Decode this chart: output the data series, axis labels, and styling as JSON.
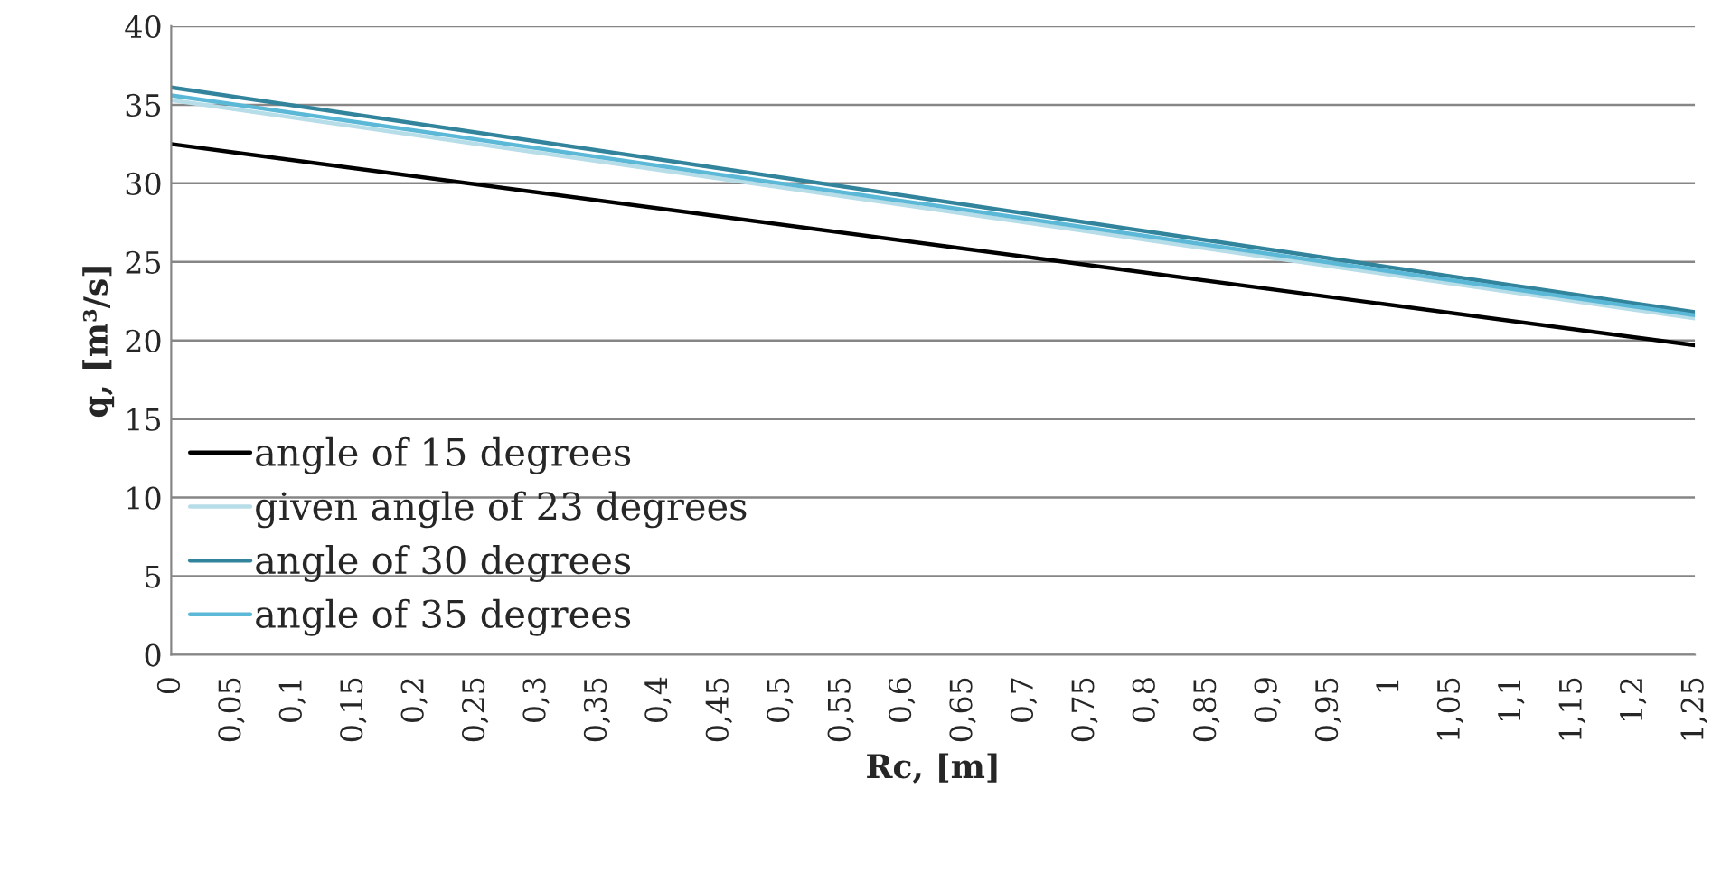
{
  "chart_data": {
    "type": "line",
    "xlabel": "Rc, [m]",
    "ylabel": "q, [m³/s]",
    "x": [
      0,
      1.25
    ],
    "series": [
      {
        "name": "angle of 15 degrees",
        "color": "#000000",
        "values": [
          32.5,
          19.7
        ]
      },
      {
        "name": "given angle of 23 degrees",
        "color": "#b7dde8",
        "values": [
          35.3,
          21.4
        ]
      },
      {
        "name": "angle of 30 degrees",
        "color": "#31849b",
        "values": [
          36.1,
          21.8
        ]
      },
      {
        "name": "angle of 35 degrees",
        "color": "#5bb8d6",
        "values": [
          35.6,
          21.6
        ]
      }
    ],
    "xlim": [
      0,
      1.25
    ],
    "xticks": [
      {
        "value": 0,
        "label": "0"
      },
      {
        "value": 0.05,
        "label": "0,05"
      },
      {
        "value": 0.1,
        "label": "0,1"
      },
      {
        "value": 0.15,
        "label": "0,15"
      },
      {
        "value": 0.2,
        "label": "0,2"
      },
      {
        "value": 0.25,
        "label": "0,25"
      },
      {
        "value": 0.3,
        "label": "0,3"
      },
      {
        "value": 0.35,
        "label": "0,35"
      },
      {
        "value": 0.4,
        "label": "0,4"
      },
      {
        "value": 0.45,
        "label": "0,45"
      },
      {
        "value": 0.5,
        "label": "0,5"
      },
      {
        "value": 0.55,
        "label": "0,55"
      },
      {
        "value": 0.6,
        "label": "0,6"
      },
      {
        "value": 0.65,
        "label": "0,65"
      },
      {
        "value": 0.7,
        "label": "0,7"
      },
      {
        "value": 0.75,
        "label": "0,75"
      },
      {
        "value": 0.8,
        "label": "0,8"
      },
      {
        "value": 0.85,
        "label": "0,85"
      },
      {
        "value": 0.9,
        "label": "0,9"
      },
      {
        "value": 0.95,
        "label": "0,95"
      },
      {
        "value": 1,
        "label": "1"
      },
      {
        "value": 1.05,
        "label": "1,05"
      },
      {
        "value": 1.1,
        "label": "1,1"
      },
      {
        "value": 1.15,
        "label": "1,15"
      },
      {
        "value": 1.2,
        "label": "1,2"
      },
      {
        "value": 1.25,
        "label": "1,25"
      }
    ],
    "ylim": [
      0,
      40
    ],
    "yticks": [
      0,
      5,
      10,
      15,
      20,
      25,
      30,
      35,
      40
    ],
    "grid": "y",
    "legend": "bottom left",
    "marker": "none",
    "line_style": "solid"
  }
}
